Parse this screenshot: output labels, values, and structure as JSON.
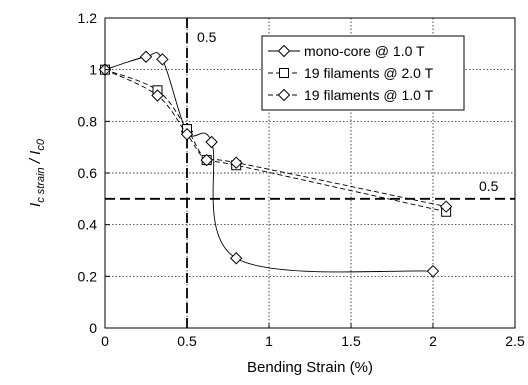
{
  "chart_data": {
    "type": "line",
    "xlabel": "Bending Strain  (%)",
    "ylabel_main": "I",
    "ylabel_sub1": "c strain",
    "ylabel_sep": " / I",
    "ylabel_sub2": "c0",
    "xlim": [
      0,
      2.5
    ],
    "ylim": [
      0,
      1.2
    ],
    "xticks": [
      "0",
      "0.5",
      "1",
      "1.5",
      "2",
      "2.5"
    ],
    "yticks": [
      "0",
      "0.2",
      "0.4",
      "0.6",
      "0.8",
      "1",
      "1.2"
    ],
    "grid": "dotted",
    "legend_position": "top-right",
    "reference_lines": {
      "vertical": {
        "x": 0.5,
        "label": "0.5"
      },
      "horizontal": {
        "y": 0.5,
        "label": "0.5"
      }
    },
    "series": [
      {
        "name": "mono-core @ 1.0 T",
        "marker": "diamond",
        "line": "solid",
        "points": [
          [
            0,
            1.0
          ],
          [
            0.25,
            1.05
          ],
          [
            0.35,
            1.04
          ],
          [
            0.5,
            0.76
          ],
          [
            0.65,
            0.72
          ],
          [
            0.8,
            0.27
          ],
          [
            2.0,
            0.22
          ]
        ]
      },
      {
        "name": "19 filaments @ 2.0 T",
        "marker": "square",
        "line": "dashed",
        "points": [
          [
            0,
            1.0
          ],
          [
            0.32,
            0.92
          ],
          [
            0.5,
            0.77
          ],
          [
            0.62,
            0.65
          ],
          [
            0.8,
            0.63
          ],
          [
            2.08,
            0.45
          ]
        ]
      },
      {
        "name": "19 filaments @ 1.0 T",
        "marker": "diamond",
        "line": "dashed",
        "points": [
          [
            0,
            1.0
          ],
          [
            0.32,
            0.9
          ],
          [
            0.5,
            0.75
          ],
          [
            0.62,
            0.65
          ],
          [
            0.8,
            0.64
          ],
          [
            2.08,
            0.47
          ]
        ]
      }
    ]
  }
}
